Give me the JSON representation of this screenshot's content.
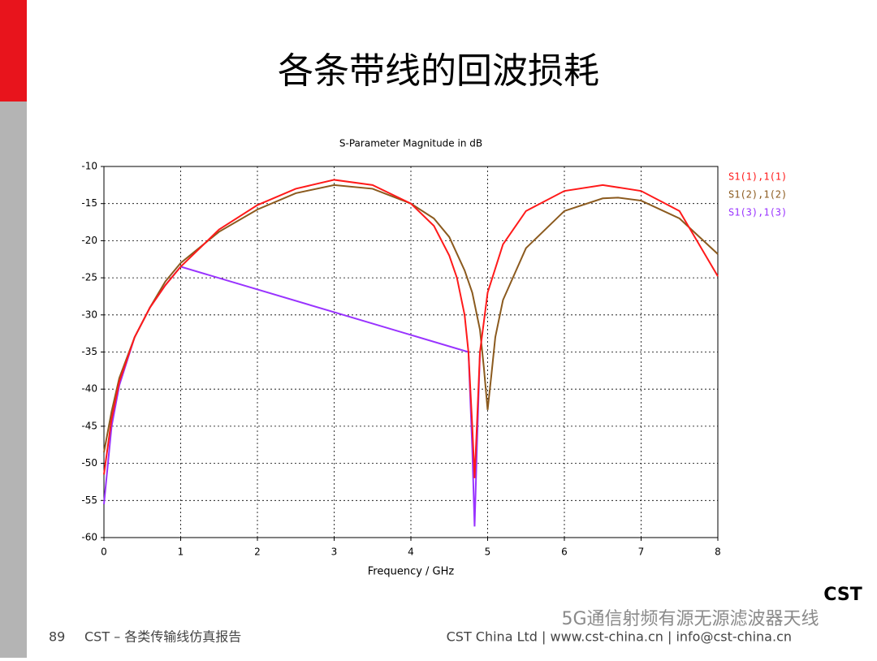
{
  "slide_title": "各条带线的回波损耗",
  "footer": {
    "page": "89",
    "left": "CST – 各类传输线仿真报告",
    "right": "CST China Ltd | www.cst-china.cn | info@cst-china.cn"
  },
  "logo": "CST",
  "watermark": "5G通信射频有源无源滤波器天线",
  "chart_data": {
    "type": "line",
    "title": "S-Parameter Magnitude in dB",
    "x_label": "Frequency / GHz",
    "xlim": [
      0,
      8
    ],
    "xticks": [
      0,
      1,
      2,
      3,
      4,
      5,
      6,
      7,
      8
    ],
    "ylim": [
      -60,
      -10
    ],
    "yticks": [
      -10,
      -15,
      -20,
      -25,
      -30,
      -35,
      -40,
      -45,
      -50,
      -55,
      -60
    ],
    "grid": true,
    "legend": "right",
    "series": [
      {
        "name": "S1(1),1(1)",
        "color": "#ff1a1a",
        "x": [
          0,
          0.1,
          0.2,
          0.4,
          0.6,
          0.8,
          1,
          1.5,
          2,
          2.5,
          3,
          3.5,
          4,
          4.3,
          4.5,
          4.6,
          4.7,
          4.75,
          4.8,
          4.83,
          4.86,
          4.9,
          5,
          5.2,
          5.5,
          6,
          6.5,
          7,
          7.5,
          8
        ],
        "values": [
          -51.5,
          -44,
          -39,
          -33,
          -29,
          -26,
          -23.5,
          -18.5,
          -15.2,
          -13,
          -11.8,
          -12.5,
          -15,
          -18,
          -22,
          -25,
          -30,
          -35,
          -45,
          -52,
          -45,
          -35,
          -27,
          -20.5,
          -16,
          -13.3,
          -12.5,
          -13.3,
          -16,
          -24.8
        ]
      },
      {
        "name": "S1(2),1(2)",
        "color": "#8b5a1e",
        "x": [
          0,
          0.1,
          0.2,
          0.4,
          0.6,
          0.8,
          1,
          1.5,
          2,
          2.5,
          3,
          3.5,
          4,
          4.3,
          4.5,
          4.7,
          4.8,
          4.9,
          4.95,
          5,
          5.05,
          5.1,
          5.2,
          5.5,
          6,
          6.5,
          6.7,
          7,
          7.5,
          8
        ],
        "values": [
          -48.5,
          -43,
          -38.5,
          -33,
          -29,
          -25.5,
          -23,
          -18.8,
          -15.8,
          -13.6,
          -12.5,
          -13,
          -15,
          -17,
          -19.5,
          -24,
          -27,
          -32,
          -37,
          -42.8,
          -38,
          -33,
          -28,
          -21,
          -16,
          -14.3,
          -14.2,
          -14.6,
          -17,
          -21.8
        ]
      },
      {
        "name": "S1(3),1(3)",
        "color": "#9933ff",
        "x": [
          0,
          0.1,
          0.2,
          0.4,
          0.6,
          0.8,
          1,
          4.75,
          4.8,
          4.83,
          4.86,
          4.9
        ],
        "values": [
          -55.5,
          -45,
          -39.5,
          -33,
          -29,
          -26,
          -23.5,
          -35,
          -48,
          -58.5,
          -48,
          -35
        ]
      }
    ]
  }
}
